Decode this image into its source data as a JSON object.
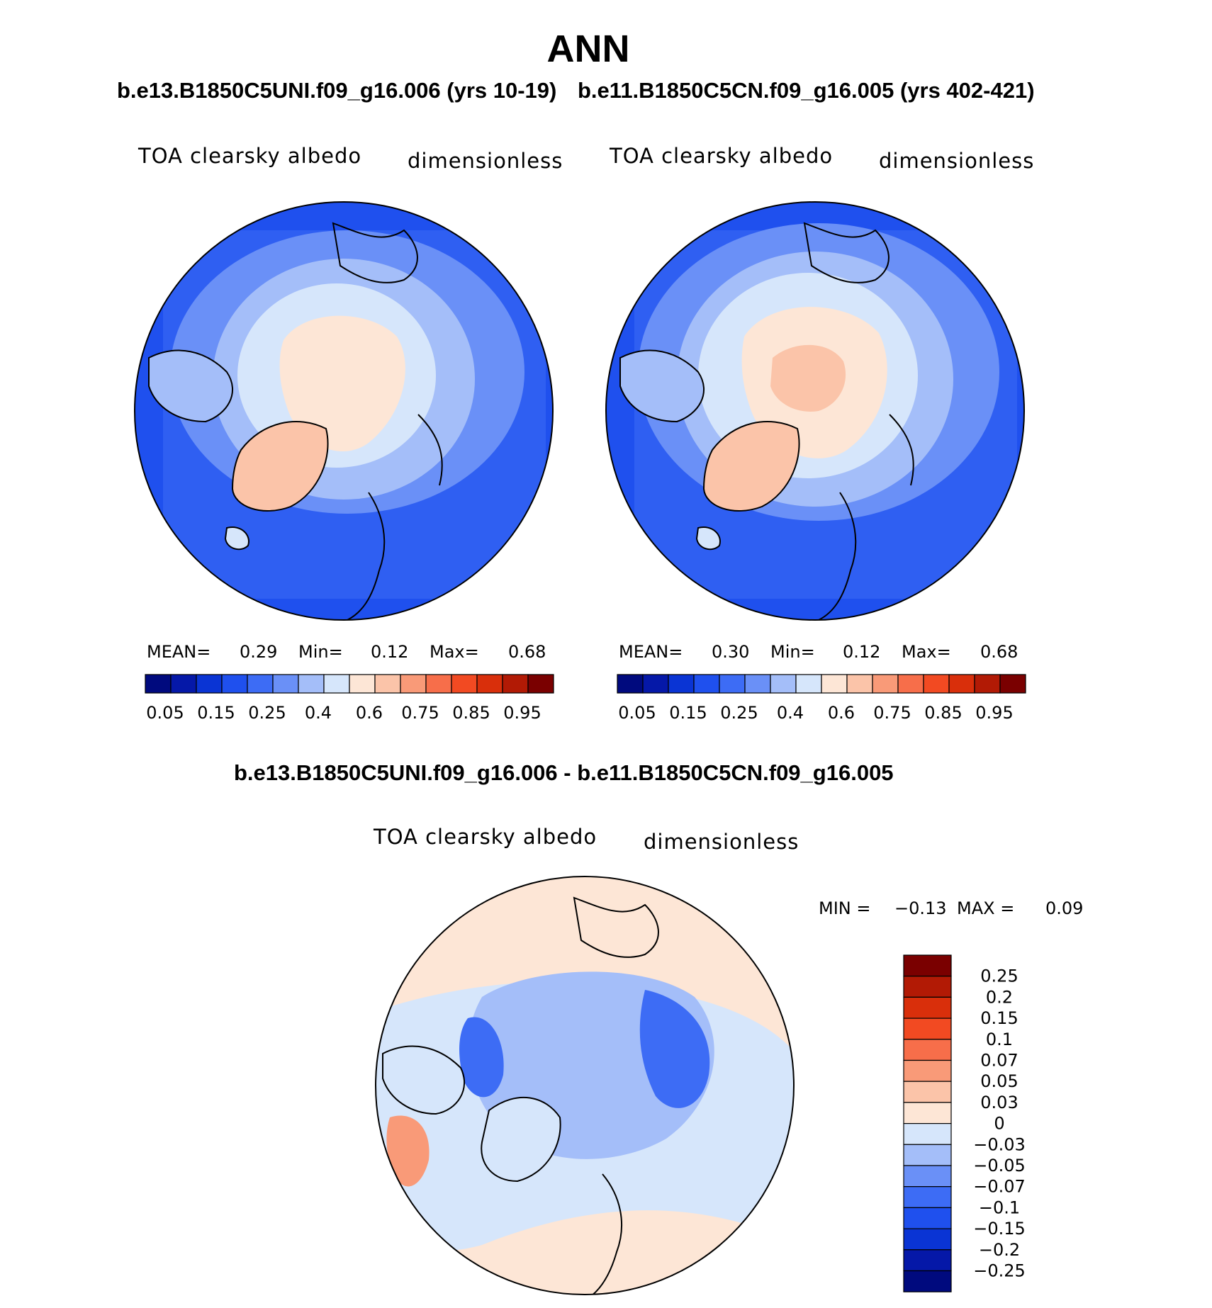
{
  "figure": {
    "title": "ANN",
    "left_panel": {
      "case": "b.e13.B1850C5UNI.f09_g16.006 (yrs 10-19)",
      "variable": "TOA clearsky albedo",
      "units": "dimensionless",
      "mean_label": "MEAN=",
      "mean_value": "0.29",
      "min_label": "Min=",
      "min_value": "0.12",
      "max_label": "Max=",
      "max_value": "0.68"
    },
    "right_panel": {
      "case": "b.e11.B1850C5CN.f09_g16.005 (yrs 402-421)",
      "variable": "TOA clearsky albedo",
      "units": "dimensionless",
      "mean_label": "MEAN=",
      "mean_value": "0.30",
      "min_label": "Min=",
      "min_value": "0.12",
      "max_label": "Max=",
      "max_value": "0.68"
    },
    "diff_panel": {
      "case": "b.e13.B1850C5UNI.f09_g16.006 - b.e11.B1850C5CN.f09_g16.005",
      "variable": "TOA clearsky albedo",
      "units": "dimensionless",
      "min_label": "MIN =",
      "min_value": "−0.13",
      "max_label": "MAX =",
      "max_value": "0.09"
    }
  },
  "chart_data": [
    {
      "type": "heatmap",
      "projection": "north polar stereographic",
      "title": "b.e13.B1850C5UNI.f09_g16.006 (yrs 10-19)",
      "variable": "TOA clearsky albedo",
      "units": "dimensionless",
      "mean": 0.29,
      "min": 0.12,
      "max": 0.68,
      "colorbar_levels": [
        0.05,
        0.1,
        0.15,
        0.2,
        0.25,
        0.3,
        0.4,
        0.5,
        0.6,
        0.7,
        0.75,
        0.8,
        0.85,
        0.9,
        0.95
      ],
      "colorbar_ticks": [
        "0.05",
        "0.15",
        "0.25",
        "0.4",
        "0.6",
        "0.75",
        "0.85",
        "0.95"
      ],
      "colorbar_colors": [
        "#000a7e",
        "#0518a8",
        "#0a34d4",
        "#1f50ee",
        "#3d6cf5",
        "#6a90f7",
        "#a4bef9",
        "#d6e6fb",
        "#fde6d6",
        "#fbc4a9",
        "#f99a78",
        "#f76e4a",
        "#f24a22",
        "#d92f0b",
        "#b21a05",
        "#7a0000"
      ]
    },
    {
      "type": "heatmap",
      "projection": "north polar stereographic",
      "title": "b.e11.B1850C5CN.f09_g16.005 (yrs 402-421)",
      "variable": "TOA clearsky albedo",
      "units": "dimensionless",
      "mean": 0.3,
      "min": 0.12,
      "max": 0.68,
      "colorbar_levels": [
        0.05,
        0.1,
        0.15,
        0.2,
        0.25,
        0.3,
        0.4,
        0.5,
        0.6,
        0.7,
        0.75,
        0.8,
        0.85,
        0.9,
        0.95
      ],
      "colorbar_ticks": [
        "0.05",
        "0.15",
        "0.25",
        "0.4",
        "0.6",
        "0.75",
        "0.85",
        "0.95"
      ],
      "colorbar_colors": [
        "#000a7e",
        "#0518a8",
        "#0a34d4",
        "#1f50ee",
        "#3d6cf5",
        "#6a90f7",
        "#a4bef9",
        "#d6e6fb",
        "#fde6d6",
        "#fbc4a9",
        "#f99a78",
        "#f76e4a",
        "#f24a22",
        "#d92f0b",
        "#b21a05",
        "#7a0000"
      ]
    },
    {
      "type": "heatmap",
      "projection": "north polar stereographic",
      "title": "b.e13.B1850C5UNI.f09_g16.006 - b.e11.B1850C5CN.f09_g16.005",
      "variable": "TOA clearsky albedo",
      "units": "dimensionless",
      "min": -0.13,
      "max": 0.09,
      "colorbar_ticks": [
        "0.25",
        "0.2",
        "0.15",
        "0.1",
        "0.07",
        "0.05",
        "0.03",
        "0",
        "−0.03",
        "−0.05",
        "−0.07",
        "−0.1",
        "−0.15",
        "−0.2",
        "−0.25"
      ],
      "colorbar_colors_top_to_bottom": [
        "#7a0000",
        "#b21a05",
        "#d92f0b",
        "#f24a22",
        "#f76e4a",
        "#f99a78",
        "#fbc4a9",
        "#fde6d6",
        "#d6e6fb",
        "#a4bef9",
        "#6a90f7",
        "#3d6cf5",
        "#1f50ee",
        "#0a34d4",
        "#0518a8",
        "#000a7e"
      ]
    }
  ]
}
